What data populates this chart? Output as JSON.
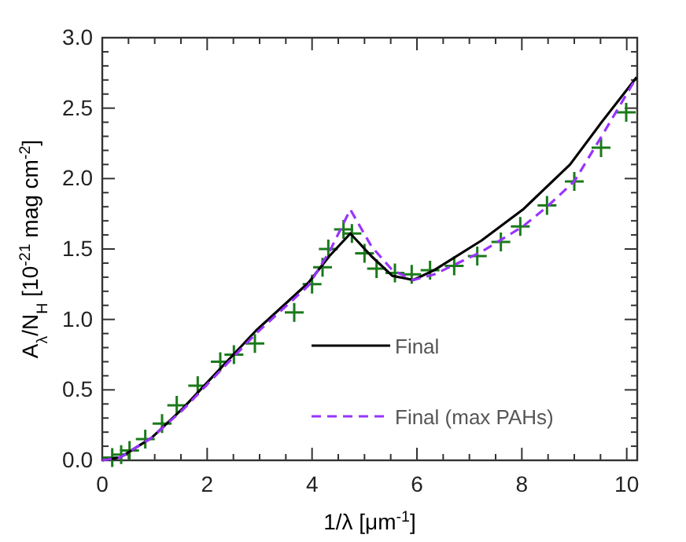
{
  "chart_data": {
    "type": "line",
    "xlabel": "1/λ [μm$^{-1}$]",
    "ylabel": "A$_{λ}$/N$_{H}$ [10$^{-21}$ mag cm$^{-2}$]",
    "xlim": [
      0,
      10.2
    ],
    "ylim": [
      0,
      3
    ],
    "xticks": [
      0,
      2,
      4,
      6,
      8,
      10
    ],
    "yticks": [
      {
        "value": 0,
        "label": "0.0"
      },
      {
        "value": 0.5,
        "label": "0.5"
      },
      {
        "value": 1,
        "label": "1.0"
      },
      {
        "value": 1.5,
        "label": "1.5"
      },
      {
        "value": 2,
        "label": "2.0"
      },
      {
        "value": 2.5,
        "label": "2.5"
      },
      {
        "value": 3,
        "label": "3.0"
      }
    ],
    "grid": false,
    "legend": "bottom right",
    "series": [
      {
        "type": "scatter",
        "marker": "cross",
        "color": "#1a7a1a",
        "x": [
          0.19,
          0.36,
          0.52,
          0.82,
          1.14,
          1.42,
          1.82,
          2.25,
          2.51,
          2.91,
          3.66,
          4.0,
          4.2,
          4.31,
          4.6,
          4.76,
          5.0,
          5.23,
          5.58,
          5.9,
          6.25,
          6.71,
          7.15,
          7.6,
          7.97,
          8.48,
          9.0,
          9.51,
          9.99
        ],
        "values": [
          0.02,
          0.04,
          0.07,
          0.15,
          0.26,
          0.39,
          0.53,
          0.7,
          0.75,
          0.83,
          1.05,
          1.25,
          1.37,
          1.5,
          1.64,
          1.61,
          1.47,
          1.36,
          1.33,
          1.32,
          1.35,
          1.38,
          1.45,
          1.55,
          1.66,
          1.81,
          1.98,
          2.22,
          2.47
        ]
      },
      {
        "name": "Final",
        "color": "#000000",
        "line_style": "solid",
        "x": [
          0,
          0.34,
          0.94,
          1.54,
          2.93,
          3.93,
          4.33,
          4.73,
          5.13,
          5.53,
          5.93,
          6.33,
          7.23,
          8.02,
          8.92,
          9.52,
          10.19
        ],
        "values": [
          0,
          0.02,
          0.16,
          0.37,
          0.92,
          1.26,
          1.45,
          1.61,
          1.45,
          1.31,
          1.28,
          1.35,
          1.56,
          1.78,
          2.1,
          2.4,
          2.72
        ]
      },
      {
        "name": "Final (max PAHs)",
        "color": "#9933ff",
        "line_style": "dashed",
        "x": [
          0,
          0.34,
          0.94,
          1.54,
          2.93,
          3.93,
          4.33,
          4.73,
          5.13,
          5.53,
          5.93,
          6.33,
          7.23,
          8.02,
          8.48,
          9.0,
          9.52,
          10.19
        ],
        "values": [
          0,
          0.02,
          0.16,
          0.36,
          0.9,
          1.24,
          1.48,
          1.78,
          1.52,
          1.35,
          1.28,
          1.32,
          1.48,
          1.66,
          1.8,
          1.98,
          2.3,
          2.72
        ]
      }
    ]
  }
}
